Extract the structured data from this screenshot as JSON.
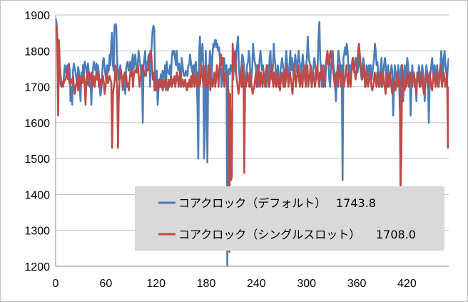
{
  "chart_data": {
    "type": "line",
    "title": "",
    "xlabel": "",
    "ylabel": "",
    "xlim": [
      0,
      470
    ],
    "ylim": [
      1200,
      1900
    ],
    "x_ticks": [
      0,
      60,
      120,
      180,
      240,
      300,
      360,
      420
    ],
    "y_ticks": [
      1200,
      1300,
      1400,
      1500,
      1600,
      1700,
      1800,
      1900
    ],
    "grid": "horizontal",
    "legend": {
      "placement": "bottom-right",
      "background": "#d9d9d9",
      "entries": [
        {
          "label": "コアクロック（デフォルト）",
          "value": "1743.8",
          "color": "#4a7ebb"
        },
        {
          "label": "コアクロック（シングルスロット）",
          "value": "1708.0",
          "color": "#be4b48"
        }
      ]
    },
    "series": [
      {
        "name": "コアクロック（デフォルト）",
        "color": "#4a7ebb",
        "values": [
          1890,
          1880,
          1840,
          1790,
          1745,
          1725,
          1705,
          1715,
          1710,
          1700,
          1730,
          1760,
          1740,
          1745,
          1760,
          1720,
          1765,
          1745,
          1660,
          1700,
          1650,
          1745,
          1765,
          1750,
          1740,
          1720,
          1705,
          1755,
          1745,
          1700,
          1660,
          1740,
          1725,
          1760,
          1730,
          1770,
          1760,
          1750,
          1730,
          1765,
          1740,
          1700,
          1730,
          1650,
          1720,
          1745,
          1770,
          1755,
          1745,
          1765,
          1735,
          1760,
          1740,
          1700,
          1675,
          1690,
          1730,
          1770,
          1780,
          1755,
          1735,
          1720,
          1760,
          1740,
          1745,
          1790,
          1760,
          1820,
          1850,
          1760,
          1745,
          1870,
          1875,
          1870,
          1785,
          1740,
          1720,
          1745,
          1760,
          1730,
          1720,
          1690,
          1700,
          1720,
          1680,
          1750,
          1765,
          1770,
          1745,
          1745,
          1770,
          1740,
          1760,
          1790,
          1750,
          1770,
          1790,
          1760,
          1740,
          1760,
          1800,
          1780,
          1760,
          1740,
          1760,
          1600,
          1760,
          1780,
          1800,
          1730,
          1770,
          1760,
          1790,
          1780,
          1700,
          1790,
          1820,
          1860,
          1870,
          1860,
          1720,
          1690,
          1745,
          1650,
          1690,
          1710,
          1720,
          1735,
          1710,
          1745,
          1735,
          1725,
          1760,
          1690,
          1770,
          1740,
          1745,
          1735,
          1760,
          1720,
          1775,
          1800,
          1790,
          1800,
          1780,
          1760,
          1800,
          1760,
          1745,
          1765,
          1740,
          1700,
          1780,
          1760,
          1740,
          1730,
          1730,
          1745,
          1740,
          1730,
          1760,
          1760,
          1790,
          1770,
          1750,
          1740,
          1760,
          1720,
          1760,
          1770,
          1720,
          1650,
          1500,
          1790,
          1840,
          1760,
          1790,
          1820,
          1760,
          1500,
          1580,
          1800,
          1700,
          1490,
          1760,
          1740,
          1800,
          1780,
          1710,
          1780,
          1820,
          1810,
          1830,
          1830,
          1810,
          1820,
          1800,
          1810,
          1780,
          1760,
          1700,
          1750,
          1740,
          1780,
          1760,
          1735,
          1760,
          1200,
          1740,
          1750,
          1735,
          1760,
          1760,
          1740,
          1720,
          1760,
          1780,
          1740,
          1800,
          1820,
          1840,
          1750,
          1720,
          1740,
          1760,
          1790,
          1780,
          1760,
          1700,
          1720,
          1740,
          1760,
          1770,
          1800,
          1780,
          1700,
          1720,
          1750,
          1820,
          1790,
          1770,
          1760,
          1740,
          1760,
          1700,
          1740,
          1780,
          1800,
          1770,
          1745,
          1760,
          1740,
          1730,
          1720,
          1700,
          1740,
          1760,
          1700,
          1780,
          1800,
          1740,
          1720,
          1760,
          1820,
          1780,
          1760,
          1700,
          1740,
          1760,
          1700,
          1720,
          1745,
          1760,
          1780,
          1760,
          1740,
          1700,
          1760,
          1800,
          1770,
          1740,
          1720,
          1760,
          1800,
          1745,
          1780,
          1760,
          1720,
          1760,
          1790,
          1760,
          1740,
          1770,
          1800,
          1770,
          1760,
          1730,
          1760,
          1790,
          1760,
          1740,
          1720,
          1760,
          1780,
          1840,
          1790,
          1770,
          1760,
          1720,
          1700,
          1740,
          1760,
          1780,
          1760,
          1720,
          1740,
          1760,
          1840,
          1880,
          1780,
          1740,
          1700,
          1720,
          1760,
          1740,
          1700,
          1760,
          1780,
          1770,
          1760,
          1720,
          1700,
          1760,
          1780,
          1800,
          1760,
          1740,
          1700,
          1660,
          1720,
          1760,
          1800,
          1780,
          1760,
          1700,
          1760,
          1440,
          1780,
          1790,
          1810,
          1790,
          1820,
          1800,
          1760,
          1740,
          1760,
          1720,
          1760,
          1780,
          1760,
          1740,
          1760,
          1780,
          1760,
          1740,
          1760,
          1800,
          1760,
          1740,
          1720,
          1760,
          1780,
          1760,
          1700,
          1720,
          1760,
          1750,
          1730,
          1760,
          1740,
          1760,
          1720,
          1740,
          1760,
          1780,
          1820,
          1800,
          1760,
          1770,
          1740,
          1700,
          1720,
          1760,
          1780,
          1700,
          1740,
          1760,
          1780,
          1760,
          1700,
          1740,
          1760,
          1700,
          1720,
          1740,
          1760,
          1740,
          1620,
          1700,
          1760,
          1740,
          1720,
          1700,
          1760,
          1740,
          1640,
          1740,
          1760,
          1700,
          1660,
          1720,
          1760,
          1700,
          1740,
          1780,
          1760,
          1720,
          1740,
          1620,
          1700,
          1760,
          1720,
          1740,
          1700,
          1720,
          1660,
          1740,
          1720,
          1760,
          1740,
          1700,
          1720,
          1760,
          1740,
          1720,
          1660,
          1720,
          1760,
          1740,
          1720,
          1600,
          1720,
          1740,
          1760,
          1780,
          1740,
          1720,
          1760,
          1740,
          1720,
          1760,
          1720,
          1700,
          1740,
          1760,
          1800,
          1760,
          1720,
          1780,
          1800,
          1760,
          1740,
          1720,
          1760,
          1780
        ]
      },
      {
        "name": "コアクロック（シングルスロット）",
        "color": "#be4b48",
        "values": [
          1860,
          1870,
          1820,
          1620,
          1830,
          1760,
          1730,
          1700,
          1705,
          1715,
          1710,
          1720,
          1720,
          1735,
          1740,
          1760,
          1725,
          1705,
          1720,
          1710,
          1720,
          1730,
          1700,
          1680,
          1700,
          1710,
          1720,
          1690,
          1735,
          1725,
          1700,
          1730,
          1710,
          1720,
          1730,
          1700,
          1650,
          1720,
          1740,
          1705,
          1740,
          1720,
          1730,
          1740,
          1700,
          1710,
          1730,
          1700,
          1720,
          1740,
          1720,
          1740,
          1700,
          1710,
          1720,
          1700,
          1720,
          1730,
          1710,
          1680,
          1700,
          1720,
          1740,
          1710,
          1720,
          1730,
          1720,
          1710,
          1530,
          1680,
          1700,
          1720,
          1760,
          1730,
          1700,
          1530,
          1670,
          1720,
          1750,
          1740,
          1720,
          1700,
          1730,
          1740,
          1720,
          1730,
          1700,
          1710,
          1690,
          1720,
          1740,
          1730,
          1750,
          1700,
          1730,
          1745,
          1740,
          1750,
          1740,
          1760,
          1730,
          1700,
          1720,
          1740,
          1750,
          1760,
          1745,
          1730,
          1740,
          1745,
          1750,
          1745,
          1760,
          1780,
          1800,
          1790,
          1760,
          1720,
          1740,
          1690,
          1720,
          1700,
          1710,
          1690,
          1720,
          1700,
          1700,
          1720,
          1700,
          1690,
          1720,
          1700,
          1710,
          1720,
          1700,
          1690,
          1720,
          1700,
          1710,
          1730,
          1700,
          1720,
          1710,
          1730,
          1700,
          1720,
          1740,
          1720,
          1700,
          1730,
          1740,
          1700,
          1710,
          1720,
          1700,
          1710,
          1720,
          1700,
          1690,
          1710,
          1700,
          1720,
          1700,
          1730,
          1700,
          1740,
          1720,
          1700,
          1730,
          1720,
          1700,
          1740,
          1720,
          1700,
          1710,
          1760,
          1740,
          1720,
          1700,
          1740,
          1760,
          1700,
          1720,
          1700,
          1740,
          1760,
          1690,
          1710,
          1720,
          1700,
          1720,
          1740,
          1700,
          1720,
          1760,
          1740,
          1700,
          1750,
          1770,
          1790,
          1760,
          1780,
          1720,
          1700,
          1740,
          1720,
          1710,
          1700,
          1690,
          1240,
          1680,
          1440,
          1450,
          1820,
          1780,
          1760,
          1800,
          1740,
          1720,
          1700,
          1680,
          1700,
          1740,
          1720,
          1700,
          1760,
          1740,
          1460,
          1720,
          1700,
          1720,
          1740,
          1720,
          1700,
          1740,
          1720,
          1700,
          1680,
          1690,
          1700,
          1720,
          1740,
          1700,
          1740,
          1760,
          1720,
          1700,
          1740,
          1720,
          1700,
          1740,
          1720,
          1700,
          1740,
          1760,
          1740,
          1720,
          1700,
          1720,
          1740,
          1760,
          1720,
          1700,
          1740,
          1720,
          1700,
          1720,
          1740,
          1700,
          1720,
          1690,
          1720,
          1740,
          1720,
          1700,
          1740,
          1700,
          1720,
          1760,
          1740,
          1700,
          1720,
          1740,
          1720,
          1700,
          1680,
          1720,
          1760,
          1740,
          1700,
          1720,
          1740,
          1760,
          1720,
          1700,
          1740,
          1720,
          1700,
          1740,
          1760,
          1720,
          1700,
          1740,
          1760,
          1700,
          1720,
          1740,
          1760,
          1700,
          1720,
          1740,
          1720,
          1700,
          1720,
          1740,
          1760,
          1720,
          1700,
          1740,
          1720,
          1760,
          1740,
          1700,
          1720,
          1740,
          1760,
          1780,
          1800,
          1780,
          1760,
          1790,
          1800,
          1780,
          1760,
          1740,
          1720,
          1700,
          1720,
          1740,
          1720,
          1700,
          1760,
          1740,
          1720,
          1700,
          1740,
          1720,
          1700,
          1720,
          1740,
          1760,
          1720,
          1700,
          1740,
          1720,
          1700,
          1740,
          1760,
          1780,
          1760,
          1740,
          1720,
          1740,
          1760,
          1800,
          1820,
          1790,
          1760,
          1740,
          1720,
          1740,
          1760,
          1720,
          1700,
          1740,
          1720,
          1700,
          1720,
          1740,
          1720,
          1700,
          1690,
          1700,
          1720,
          1740,
          1720,
          1700,
          1740,
          1720,
          1700,
          1720,
          1740,
          1700,
          1720,
          1740,
          1720,
          1700,
          1680,
          1720,
          1740,
          1700,
          1720,
          1740,
          1720,
          1700,
          1680,
          1700,
          1720,
          1700,
          1690,
          1720,
          1740,
          1720,
          1700,
          1720,
          1400,
          1520,
          1760,
          1720,
          1700,
          1690,
          1720,
          1700,
          1740,
          1720,
          1700,
          1720,
          1740,
          1720,
          1700,
          1720,
          1740,
          1720,
          1700,
          1680,
          1720,
          1740,
          1720,
          1700,
          1720,
          1740,
          1720,
          1700,
          1680,
          1700,
          1720,
          1740,
          1720,
          1700,
          1720,
          1740,
          1720,
          1700,
          1690,
          1720,
          1740,
          1720,
          1700,
          1720,
          1740,
          1700,
          1720,
          1740,
          1760,
          1720,
          1700,
          1720,
          1740,
          1720,
          1700,
          1720,
          1740,
          1530,
          1700
        ]
      }
    ]
  }
}
